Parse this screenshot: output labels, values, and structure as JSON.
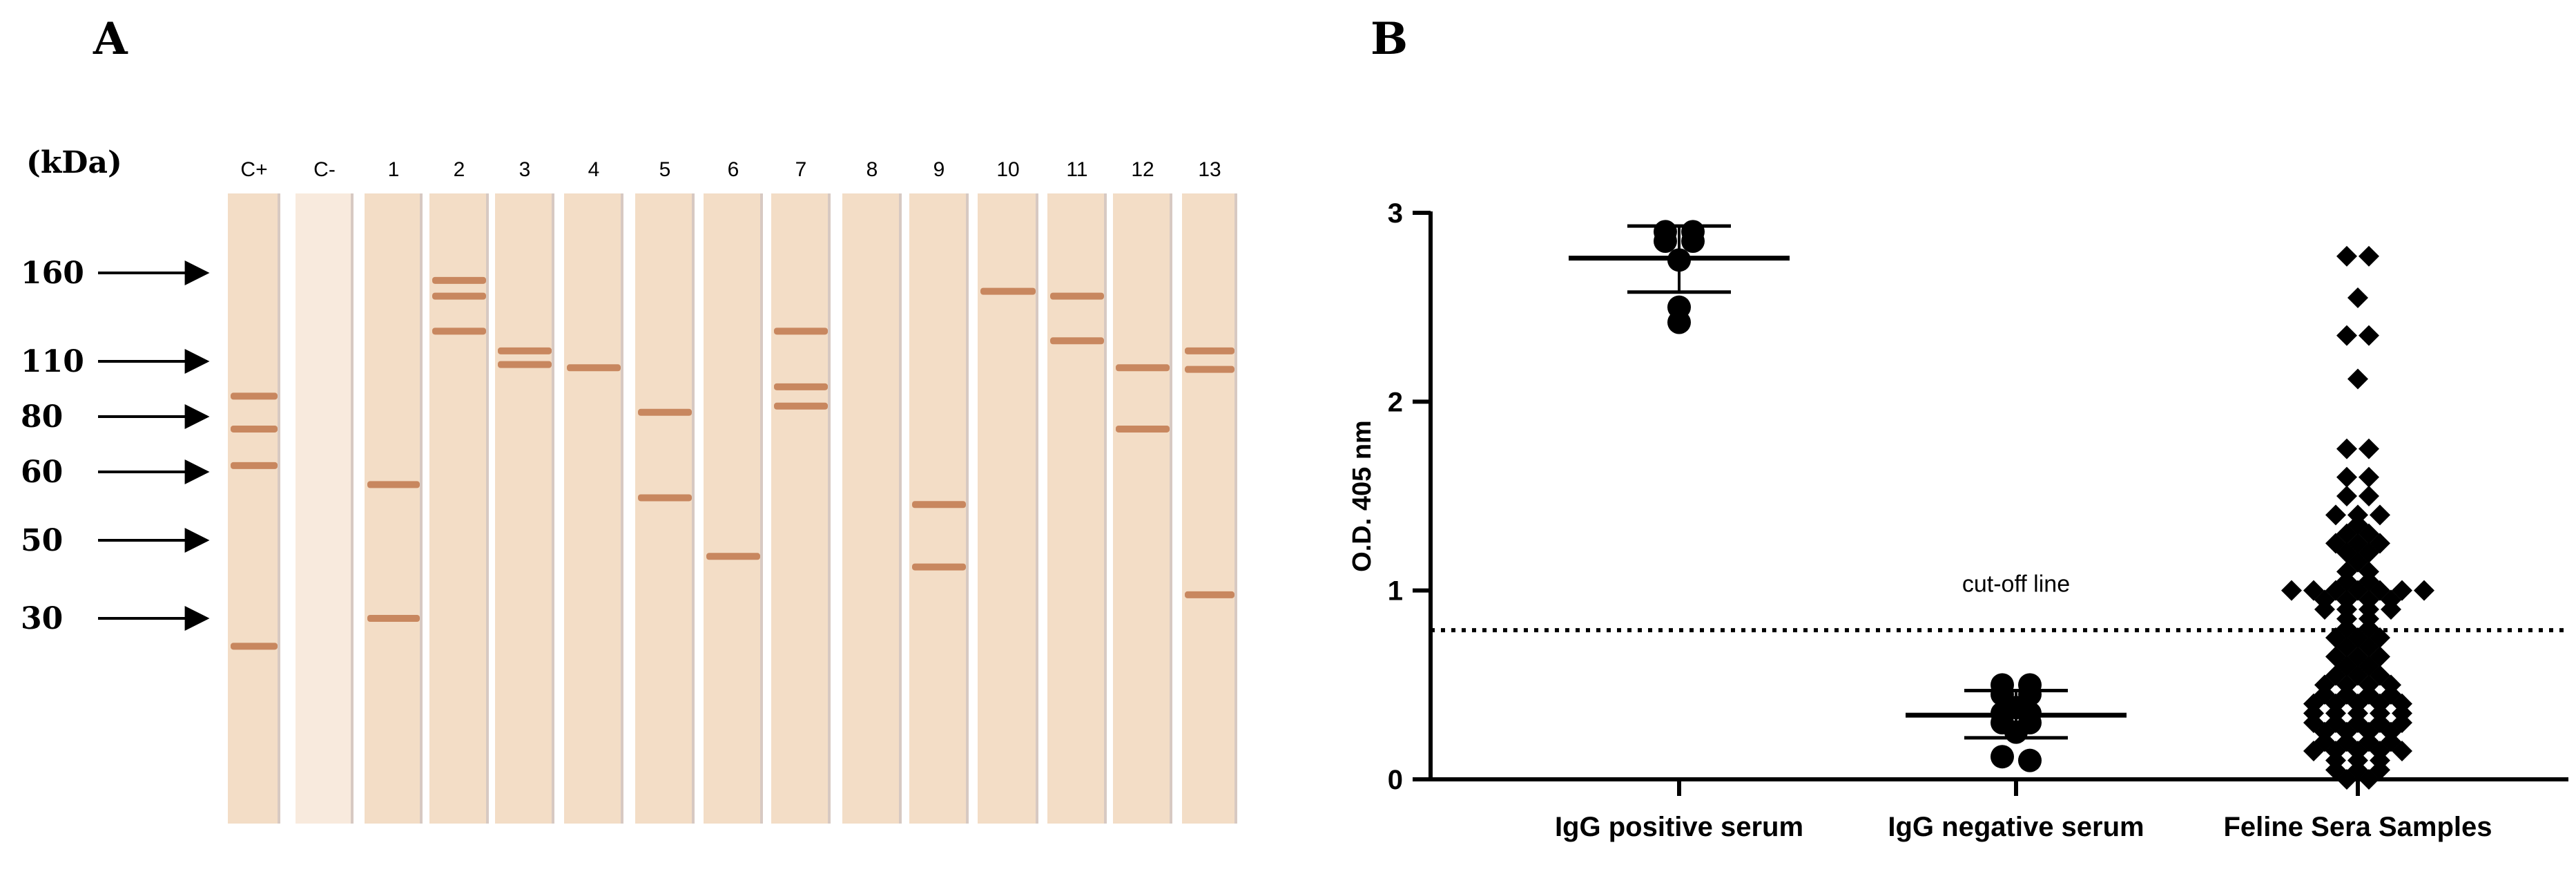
{
  "panels": {
    "a_label": "A",
    "b_label": "B"
  },
  "blot": {
    "unit_label": "(kDa)",
    "lanes": [
      "C+",
      "C-",
      "1",
      "2",
      "3",
      "4",
      "5",
      "6",
      "7",
      "8",
      "9",
      "10",
      "11",
      "12",
      "13"
    ],
    "markers": [
      {
        "label": "160",
        "kda": 160
      },
      {
        "label": "110",
        "kda": 110
      },
      {
        "label": "80",
        "kda": 80
      },
      {
        "label": "60",
        "kda": 60
      },
      {
        "label": "50",
        "kda": 50
      },
      {
        "label": "30",
        "kda": 30
      }
    ],
    "bands": [
      {
        "lane": "C+",
        "kda": [
          90,
          75,
          62,
          25
        ]
      },
      {
        "lane": "C-",
        "kda": []
      },
      {
        "lane": "1",
        "kda": [
          58,
          30
        ]
      },
      {
        "lane": "2",
        "kda": [
          155,
          145,
          125
        ]
      },
      {
        "lane": "3",
        "kda": [
          115,
          108
        ]
      },
      {
        "lane": "4",
        "kda": [
          106
        ]
      },
      {
        "lane": "5",
        "kda": [
          82,
          56
        ]
      },
      {
        "lane": "6",
        "kda": [
          45
        ]
      },
      {
        "lane": "7",
        "kda": [
          125,
          95,
          85
        ]
      },
      {
        "lane": "8",
        "kda": []
      },
      {
        "lane": "9",
        "kda": [
          55,
          42
        ]
      },
      {
        "lane": "10",
        "kda": [
          148
        ]
      },
      {
        "lane": "11",
        "kda": [
          145,
          120
        ]
      },
      {
        "lane": "12",
        "kda": [
          106,
          75
        ]
      },
      {
        "lane": "13",
        "kda": [
          115,
          105,
          35
        ]
      }
    ]
  },
  "chart_data": {
    "type": "scatter",
    "ylabel": "O.D. 405 nm",
    "ylim": [
      0,
      3
    ],
    "yticks": [
      0,
      1,
      2,
      3
    ],
    "categories": [
      "IgG positive serum",
      "IgG negative serum",
      "Feline Sera Samples"
    ],
    "cutoff": {
      "value": 0.79,
      "label": "cut-off line"
    },
    "series": [
      {
        "name": "IgG positive serum",
        "marker": "circle",
        "values": [
          2.9,
          2.9,
          2.85,
          2.85,
          2.75,
          2.5,
          2.42
        ],
        "mean": 2.76,
        "sd_low": 2.58,
        "sd_high": 2.93
      },
      {
        "name": "IgG negative serum",
        "marker": "circle",
        "values": [
          0.5,
          0.5,
          0.45,
          0.45,
          0.38,
          0.35,
          0.35,
          0.3,
          0.3,
          0.25,
          0.12,
          0.1
        ],
        "mean": 0.34,
        "sd_low": 0.22,
        "sd_high": 0.47
      },
      {
        "name": "Feline Sera Samples",
        "marker": "diamond",
        "values": [
          2.77,
          2.77,
          2.55,
          2.35,
          2.35,
          2.12,
          1.75,
          1.75,
          1.6,
          1.6,
          1.5,
          1.5,
          1.4,
          1.4,
          1.4,
          1.35,
          1.3,
          1.3,
          1.25,
          1.25,
          1.25,
          1.2,
          1.2,
          1.15,
          1.1,
          1.1,
          1.05,
          1.05,
          1.0,
          1.0,
          1.0,
          1.0,
          1.0,
          1.0,
          1.0,
          0.95,
          0.95,
          0.95,
          0.95,
          0.9,
          0.9,
          0.9,
          0.9,
          0.85,
          0.85,
          0.8,
          0.8,
          0.75,
          0.75,
          0.75,
          0.7,
          0.7,
          0.65,
          0.65,
          0.65,
          0.6,
          0.6,
          0.55,
          0.55,
          0.55,
          0.5,
          0.5,
          0.5,
          0.5,
          0.45,
          0.45,
          0.45,
          0.45,
          0.4,
          0.4,
          0.4,
          0.4,
          0.4,
          0.35,
          0.35,
          0.35,
          0.35,
          0.35,
          0.3,
          0.3,
          0.3,
          0.3,
          0.3,
          0.25,
          0.25,
          0.25,
          0.25,
          0.2,
          0.2,
          0.2,
          0.2,
          0.15,
          0.15,
          0.15,
          0.15,
          0.15,
          0.1,
          0.1,
          0.1,
          0.05,
          0.05,
          0.05,
          0.0,
          0.0
        ]
      }
    ]
  },
  "colors": {
    "ink": "#000000",
    "membrane": "#f3ddc6",
    "membrane_light": "#f8eadd",
    "band": "#b96a3c",
    "lane_edge": "#d7c9c2"
  }
}
